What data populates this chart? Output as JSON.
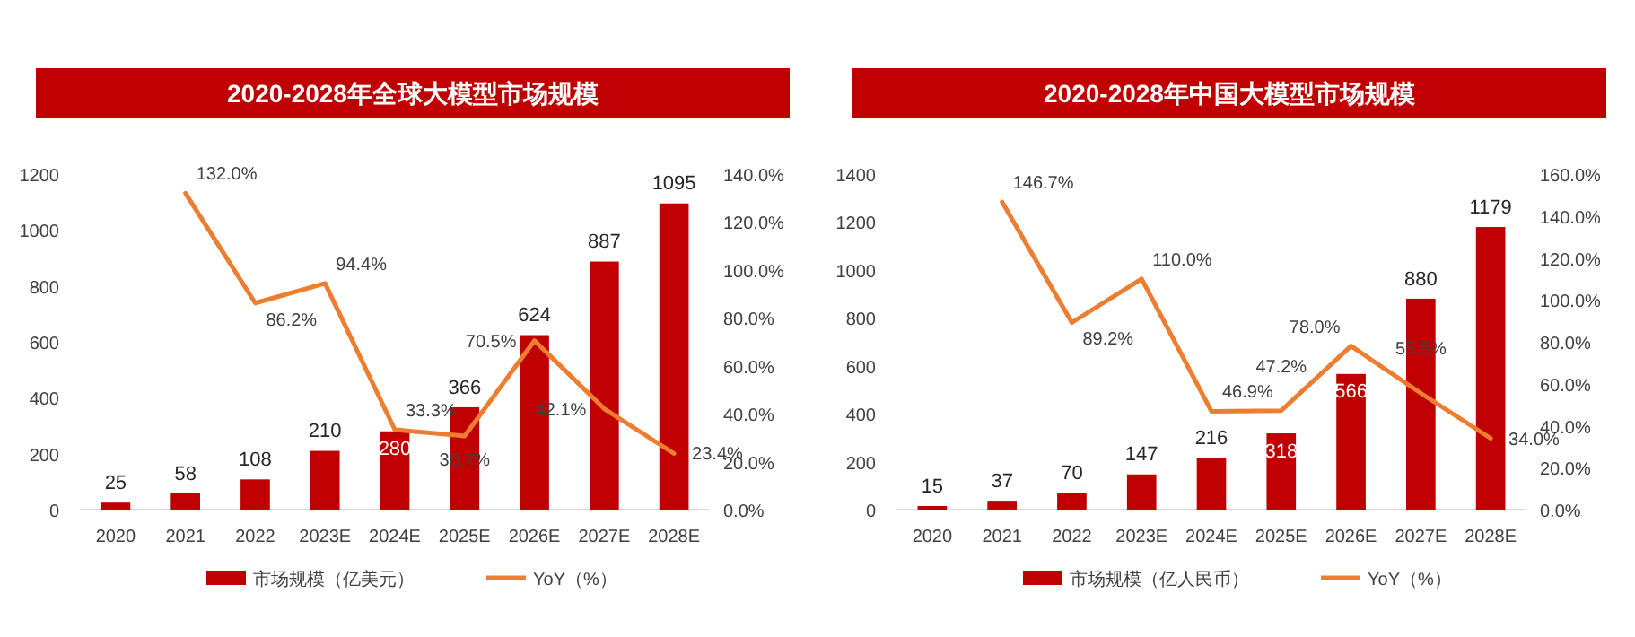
{
  "chart_data": [
    {
      "type": "bar",
      "title": "2020-2028年全球大模型市场规模",
      "categories": [
        "2020",
        "2021",
        "2022",
        "2023E",
        "2024E",
        "2025E",
        "2026E",
        "2027E",
        "2028E"
      ],
      "series": [
        {
          "name": "市场规模（亿美元）",
          "color": "#c00000",
          "values": [
            25,
            58,
            108,
            210,
            280,
            366,
            624,
            887,
            1095
          ],
          "value_labels": [
            "25",
            "58",
            "108",
            "210",
            "280",
            "366",
            "624",
            "887",
            "1095"
          ]
        },
        {
          "name": "YoY（%）",
          "type": "line",
          "axis": "y2",
          "color": "#ed7d31",
          "values": [
            null,
            132.0,
            86.2,
            94.4,
            33.3,
            30.7,
            70.5,
            42.1,
            23.4
          ],
          "value_labels": [
            null,
            "132.0%",
            "86.2%",
            "94.4%",
            "33.3%",
            "30.7%",
            "70.5%",
            "42.1%",
            "23.4%"
          ]
        }
      ],
      "ylim": [
        0,
        1200
      ],
      "yticks": [
        0,
        200,
        400,
        600,
        800,
        1000,
        1200
      ],
      "y2lim": [
        0,
        140
      ],
      "y2ticks": [
        {
          "value": 0,
          "label": "0.0%"
        },
        {
          "value": 20,
          "label": "20.0%"
        },
        {
          "value": 40,
          "label": "40.0%"
        },
        {
          "value": 60,
          "label": "60.0%"
        },
        {
          "value": 80,
          "label": "80.0%"
        },
        {
          "value": 100,
          "label": "100.0%"
        },
        {
          "value": 120,
          "label": "120.0%"
        },
        {
          "value": 140,
          "label": "140.0%"
        }
      ],
      "legend": "bottom"
    },
    {
      "type": "bar",
      "title": "2020-2028年中国大模型市场规模",
      "categories": [
        "2020",
        "2021",
        "2022",
        "2023E",
        "2024E",
        "2025E",
        "2026E",
        "2027E",
        "2028E"
      ],
      "series": [
        {
          "name": "市场规模（亿人民币）",
          "color": "#c00000",
          "values": [
            15,
            37,
            70,
            147,
            216,
            318,
            566,
            880,
            1179
          ],
          "value_labels": [
            "15",
            "37",
            "70",
            "147",
            "216",
            "318",
            "566",
            "880",
            "1179"
          ]
        },
        {
          "name": "YoY（%）",
          "type": "line",
          "axis": "y2",
          "color": "#ed7d31",
          "values": [
            null,
            146.7,
            89.2,
            110.0,
            46.9,
            47.2,
            78.0,
            55.5,
            34.0
          ],
          "value_labels": [
            null,
            "146.7%",
            "89.2%",
            "110.0%",
            "46.9%",
            "47.2%",
            "78.0%",
            "55.5%",
            "34.0%"
          ]
        }
      ],
      "ylim": [
        0,
        1400
      ],
      "yticks": [
        0,
        200,
        400,
        600,
        800,
        1000,
        1200,
        1400
      ],
      "y2lim": [
        0,
        160
      ],
      "y2ticks": [
        {
          "value": 0,
          "label": "0.0%"
        },
        {
          "value": 20,
          "label": "20.0%"
        },
        {
          "value": 40,
          "label": "40.0%"
        },
        {
          "value": 60,
          "label": "60.0%"
        },
        {
          "value": 80,
          "label": "80.0%"
        },
        {
          "value": 100,
          "label": "100.0%"
        },
        {
          "value": 120,
          "label": "120.0%"
        },
        {
          "value": 140,
          "label": "140.0%"
        },
        {
          "value": 160,
          "label": "160.0%"
        }
      ],
      "legend": "bottom"
    }
  ]
}
